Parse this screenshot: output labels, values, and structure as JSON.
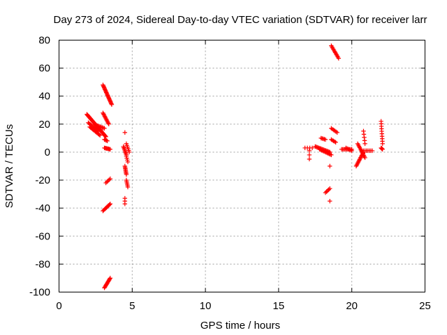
{
  "chart_data": {
    "type": "scatter",
    "title": "Day 273 of 2024, Sidereal Day-to-day VTEC variation (SDTVAR) for receiver larr",
    "xlabel": "GPS time / hours",
    "ylabel": "SDTVAR / TECUs",
    "xlim": [
      0,
      25
    ],
    "ylim": [
      -100,
      80
    ],
    "xticks": [
      0,
      5,
      10,
      15,
      20,
      25
    ],
    "yticks": [
      -100,
      -80,
      -60,
      -40,
      -20,
      0,
      20,
      40,
      60,
      80
    ],
    "grid": true,
    "marker": "plus",
    "color": "#ff0000",
    "segments": [
      {
        "x0": 1.9,
        "x1": 3.2,
        "y0": 27,
        "y1": 11,
        "n": 40
      },
      {
        "x0": 2.0,
        "x1": 2.7,
        "y0": 21,
        "y1": 15,
        "n": 12
      },
      {
        "x0": 2.1,
        "x1": 2.8,
        "y0": 18,
        "y1": 12,
        "n": 12
      },
      {
        "x0": 2.6,
        "x1": 3.1,
        "y0": 19,
        "y1": 17,
        "n": 8
      },
      {
        "x0": 3.1,
        "x1": 3.3,
        "y0": 9,
        "y1": 8,
        "n": 4
      },
      {
        "x0": 3.0,
        "x1": 3.6,
        "y0": 48,
        "y1": 34,
        "n": 22
      },
      {
        "x0": 3.0,
        "x1": 3.4,
        "y0": 28,
        "y1": 20,
        "n": 12
      },
      {
        "x0": 3.1,
        "x1": 3.5,
        "y0": 3,
        "y1": 2,
        "n": 8
      },
      {
        "x0": 3.2,
        "x1": 3.5,
        "y0": -22,
        "y1": -19,
        "n": 5
      },
      {
        "x0": 3.0,
        "x1": 3.5,
        "y0": -42,
        "y1": -37,
        "n": 10
      },
      {
        "x0": 3.1,
        "x1": 3.5,
        "y0": -97,
        "y1": -90,
        "n": 12
      },
      {
        "x0": 4.5,
        "x1": 4.5,
        "y0": 14,
        "y1": 14,
        "n": 1
      },
      {
        "x0": 4.4,
        "x1": 4.6,
        "y0": 4,
        "y1": -2,
        "n": 8
      },
      {
        "x0": 4.5,
        "x1": 4.6,
        "y0": -10,
        "y1": -16,
        "n": 8
      },
      {
        "x0": 4.5,
        "x1": 4.5,
        "y0": -33,
        "y1": -37,
        "n": 3
      },
      {
        "x0": 4.6,
        "x1": 4.7,
        "y0": -20,
        "y1": -25,
        "n": 6
      },
      {
        "x0": 4.6,
        "x1": 4.8,
        "y0": 6,
        "y1": 0,
        "n": 6
      },
      {
        "x0": 4.6,
        "x1": 4.7,
        "y0": -3,
        "y1": -7,
        "n": 4
      },
      {
        "x0": 16.8,
        "x1": 17.3,
        "y0": 3,
        "y1": 3,
        "n": 4
      },
      {
        "x0": 17.1,
        "x1": 17.1,
        "y0": 1,
        "y1": -5,
        "n": 3
      },
      {
        "x0": 17.5,
        "x1": 18.5,
        "y0": 4,
        "y1": 0,
        "n": 16
      },
      {
        "x0": 17.8,
        "x1": 18.6,
        "y0": 2,
        "y1": -2,
        "n": 12
      },
      {
        "x0": 17.9,
        "x1": 18.2,
        "y0": 10,
        "y1": 9,
        "n": 5
      },
      {
        "x0": 18.2,
        "x1": 18.5,
        "y0": -29,
        "y1": -26,
        "n": 5
      },
      {
        "x0": 18.5,
        "x1": 18.5,
        "y0": -10,
        "y1": -10,
        "n": 1
      },
      {
        "x0": 18.5,
        "x1": 18.5,
        "y0": -35,
        "y1": -35,
        "n": 1
      },
      {
        "x0": 18.6,
        "x1": 19.1,
        "y0": 76,
        "y1": 67,
        "n": 12
      },
      {
        "x0": 18.6,
        "x1": 19.0,
        "y0": 17,
        "y1": 14,
        "n": 6
      },
      {
        "x0": 18.6,
        "x1": 18.9,
        "y0": 9,
        "y1": 7,
        "n": 5
      },
      {
        "x0": 19.3,
        "x1": 20.0,
        "y0": 2,
        "y1": 2,
        "n": 10
      },
      {
        "x0": 19.6,
        "x1": 20.0,
        "y0": 3,
        "y1": 1,
        "n": 6
      },
      {
        "x0": 20.3,
        "x1": 20.8,
        "y0": -10,
        "y1": 0,
        "n": 14
      },
      {
        "x0": 20.4,
        "x1": 20.9,
        "y0": 6,
        "y1": -4,
        "n": 12
      },
      {
        "x0": 20.7,
        "x1": 21.4,
        "y0": 1,
        "y1": 1,
        "n": 8
      },
      {
        "x0": 20.8,
        "x1": 20.9,
        "y0": 15,
        "y1": 6,
        "n": 5
      },
      {
        "x0": 22.0,
        "x1": 22.1,
        "y0": 22,
        "y1": 6,
        "n": 10
      },
      {
        "x0": 22.0,
        "x1": 22.1,
        "y0": 3,
        "y1": 2,
        "n": 4
      }
    ]
  }
}
